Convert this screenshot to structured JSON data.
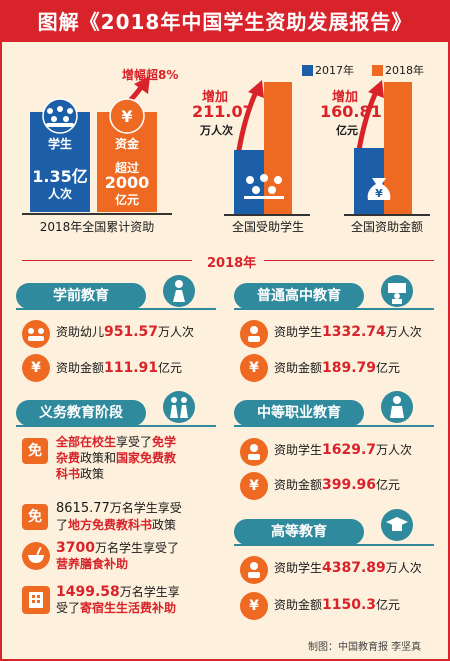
{
  "title": "图解《2018年中国学生资助发展报告》",
  "summary": {
    "growth_label": "增幅超8%",
    "student_label": "学生",
    "student_value": "1.35亿",
    "student_unit": "人次",
    "fund_label": "资金",
    "fund_prefix": "超过",
    "fund_value": "2000",
    "fund_unit": "亿元",
    "caption": "2018年全国累计资助"
  },
  "legend": {
    "y2017": "2017年",
    "y2018": "2018年",
    "color_2017": "#1c5fa8",
    "color_2018": "#ee6a22"
  },
  "compare": {
    "students": {
      "increase_label": "增加",
      "increase_value": "211.07",
      "increase_unit": "万人次",
      "caption": "全国受助学生"
    },
    "funds": {
      "increase_label": "增加",
      "increase_value": "160.81",
      "increase_unit": "亿元",
      "caption": "全国资助金额"
    }
  },
  "year_heading": "2018年",
  "preschool": {
    "title": "学前教育",
    "row1_prefix": "资助幼儿",
    "row1_value": "951.57",
    "row1_unit": "万人次",
    "row2_prefix": "资助金额",
    "row2_value": "111.91",
    "row2_unit": "亿元"
  },
  "highschool": {
    "title": "普通高中教育",
    "row1_prefix": "资助学生",
    "row1_value": "1332.74",
    "row1_unit": "万人次",
    "row2_prefix": "资助金额",
    "row2_value": "189.79",
    "row2_unit": "亿元"
  },
  "compulsory": {
    "title": "义务教育阶段",
    "badge": "免",
    "item1_a": "全部在校生",
    "item1_b": "享受了",
    "item1_c": "免学",
    "item1_d": "杂费",
    "item1_e": "政策和",
    "item1_f": "国家免费教",
    "item1_g": "科书",
    "item1_h": "政策",
    "item2_value": "8615.77",
    "item2_a": "万名学生享受",
    "item2_b": "了",
    "item2_c": "地方免费教科书",
    "item2_d": "政策",
    "item3_value": "3700",
    "item3_a": "万名学生享受了",
    "item3_b": "营养膳食补助",
    "item4_value": "1499.58",
    "item4_a": "万名学生享",
    "item4_b": "受了",
    "item4_c": "寄宿生生活费补助"
  },
  "vocational": {
    "title": "中等职业教育",
    "row1_prefix": "资助学生",
    "row1_value": "1629.7",
    "row1_unit": "万人次",
    "row2_prefix": "资助金额",
    "row2_value": "399.96",
    "row2_unit": "亿元"
  },
  "higher": {
    "title": "高等教育",
    "row1_prefix": "资助学生",
    "row1_value": "4387.89",
    "row1_unit": "万人次",
    "row2_prefix": "资助金额",
    "row2_value": "1150.3",
    "row2_unit": "亿元"
  },
  "credit": "制图：中国教育报  李坚真"
}
